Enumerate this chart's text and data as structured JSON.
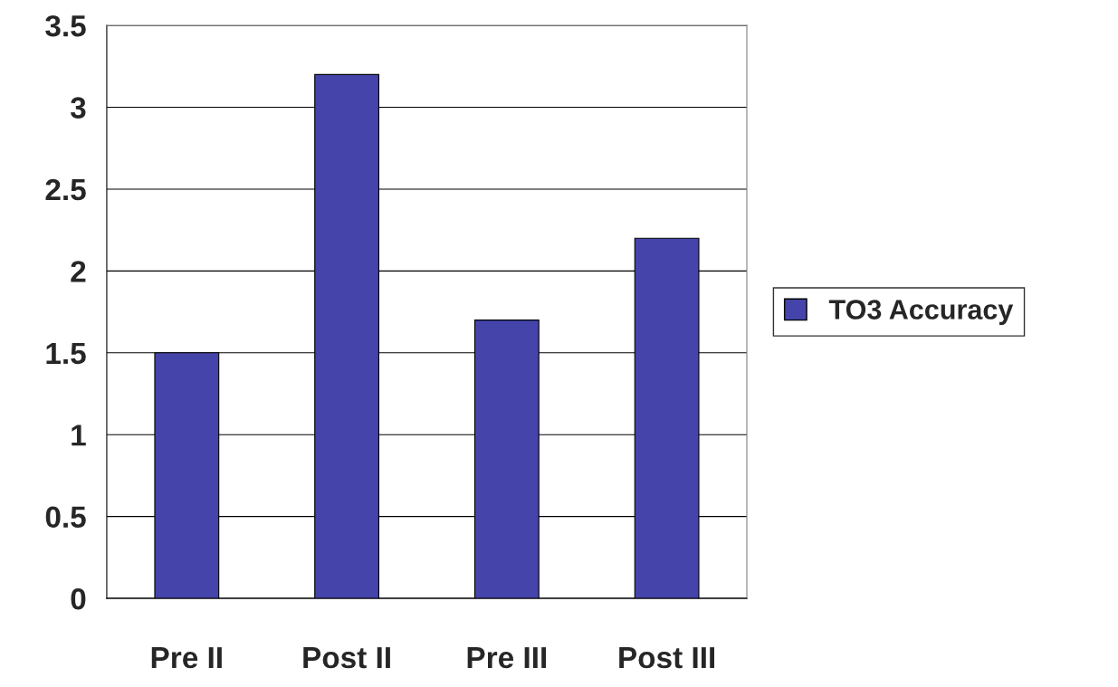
{
  "chart_data": {
    "type": "bar",
    "categories": [
      "Pre II",
      "Post II",
      "Pre III",
      "Post III"
    ],
    "series": [
      {
        "name": "TO3 Accuracy",
        "color": "#4444aa",
        "values": [
          1.5,
          3.2,
          1.7,
          2.2
        ]
      }
    ],
    "ylim": [
      0,
      3.5
    ],
    "yticks": [
      0,
      0.5,
      1,
      1.5,
      2,
      2.5,
      3,
      3.5
    ],
    "grid": "y",
    "legend": "right"
  }
}
